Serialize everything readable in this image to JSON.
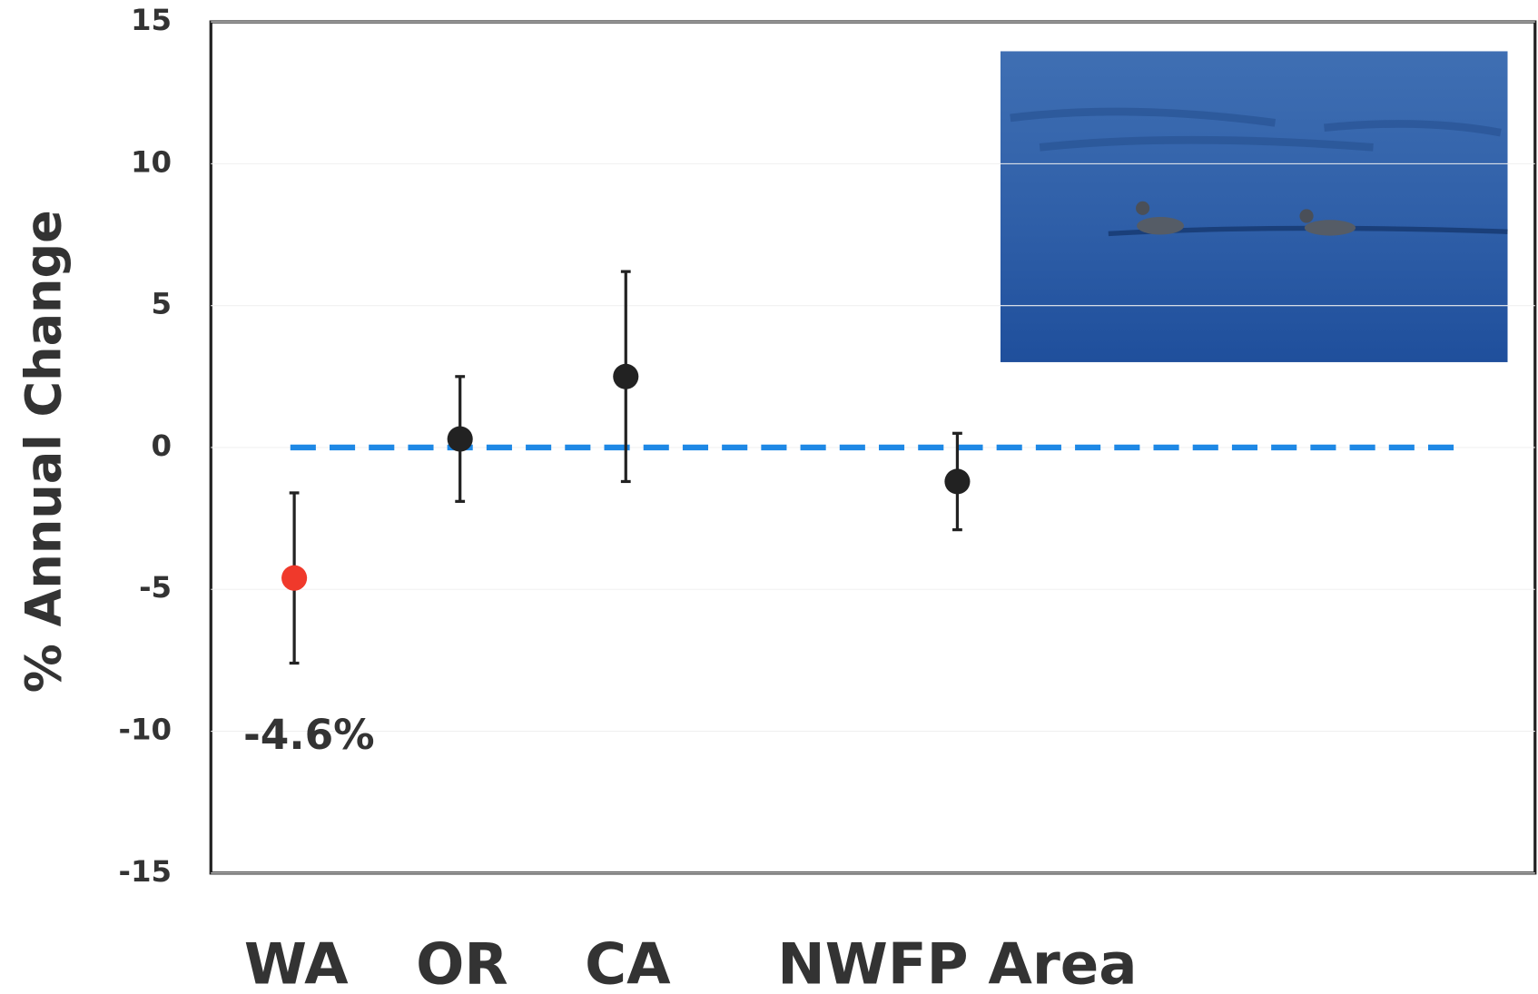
{
  "chart_data": {
    "type": "errorbar",
    "y_label": "% Annual Change",
    "categories": [
      "WA",
      "OR",
      "CA",
      "NWFP Area"
    ],
    "values": [
      -4.6,
      0.3,
      2.5,
      -1.2
    ],
    "errors": [
      3.0,
      2.2,
      3.7,
      1.7
    ],
    "colors": [
      "#f0392b",
      "#222222",
      "#222222",
      "#222222"
    ],
    "ylim": [
      -15,
      15
    ],
    "yticks": [
      15,
      10,
      5,
      0,
      -5,
      -10,
      -15
    ],
    "grid": true,
    "reference_line": {
      "value": 0,
      "color": "#1e88e5"
    },
    "annotation": "-4.6%"
  }
}
